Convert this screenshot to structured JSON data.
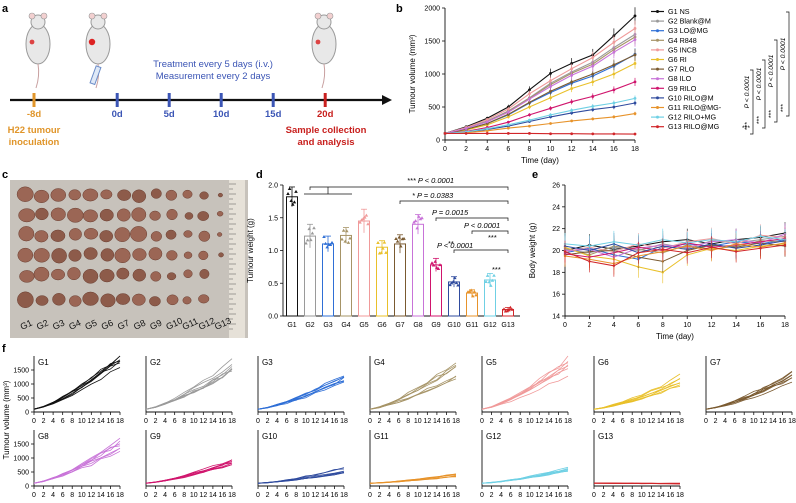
{
  "panels": {
    "a": {
      "label": "a",
      "treatment": "Treatment every 5 days (i.v.)",
      "measurement": "Measurement every 2 days",
      "inoculation_line1": "H22 tumour",
      "inoculation_line2": "inoculation",
      "sample_line1": "Sample collection",
      "sample_line2": "and analysis",
      "timepoints": [
        {
          "label": "-8d",
          "day": -8,
          "color": "#e0952a"
        },
        {
          "label": "0d",
          "day": 0,
          "color": "#3b55b5"
        },
        {
          "label": "5d",
          "day": 5,
          "color": "#3b55b5"
        },
        {
          "label": "10d",
          "day": 10,
          "color": "#3b55b5"
        },
        {
          "label": "15d",
          "day": 15,
          "color": "#3b55b5"
        },
        {
          "label": "20d",
          "day": 20,
          "color": "#c8201e"
        }
      ]
    },
    "b": {
      "label": "b"
    },
    "c": {
      "label": "c",
      "groups": [
        "G1",
        "G2",
        "G3",
        "G4",
        "G5",
        "G6",
        "G7",
        "G8",
        "G9",
        "G10",
        "G11",
        "G12",
        "G13"
      ]
    },
    "d": {
      "label": "d"
    },
    "e": {
      "label": "e"
    },
    "f": {
      "label": "f",
      "ylabel": "Tumour volume (mm³)"
    }
  },
  "groups": [
    {
      "id": "G1",
      "name": "G1 NS",
      "color": "#111111"
    },
    {
      "id": "G2",
      "name": "G2 Blank@M",
      "color": "#9a9a9a"
    },
    {
      "id": "G3",
      "name": "G3 LO@MG",
      "color": "#2f6fd6"
    },
    {
      "id": "G4",
      "name": "G4 R848",
      "color": "#a69467"
    },
    {
      "id": "G5",
      "name": "G5 INCB",
      "color": "#f09a9a"
    },
    {
      "id": "G6",
      "name": "G6 RI",
      "color": "#e9c02a"
    },
    {
      "id": "G7",
      "name": "G7 RLO",
      "color": "#7a5a30"
    },
    {
      "id": "G8",
      "name": "G8 ILO",
      "color": "#c873d8"
    },
    {
      "id": "G9",
      "name": "G9 RILO",
      "color": "#d0156d"
    },
    {
      "id": "G10",
      "name": "G10 RILO@M",
      "color": "#2f4b9e"
    },
    {
      "id": "G11",
      "name": "G11 RILO@MG-",
      "color": "#e7932b"
    },
    {
      "id": "G12",
      "name": "G12 RILO+MG",
      "color": "#6fd0e4"
    },
    {
      "id": "G13",
      "name": "G13 RILO@MG",
      "color": "#d1262a"
    }
  ],
  "chart_data": [
    {
      "id": "b",
      "type": "line",
      "title": "",
      "xlabel": "Time (day)",
      "ylabel": "Tumour volume (mm³)",
      "xlim": [
        0,
        18
      ],
      "ylim": [
        0,
        2000
      ],
      "xticks": [
        0,
        2,
        4,
        6,
        8,
        10,
        12,
        14,
        16,
        18
      ],
      "yticks": [
        0,
        500,
        1000,
        1500,
        2000
      ],
      "x": [
        0,
        2,
        4,
        6,
        8,
        10,
        12,
        14,
        16,
        18
      ],
      "series": [
        {
          "name": "G1 NS",
          "values": [
            100,
            200,
            330,
            500,
            760,
            1010,
            1160,
            1290,
            1580,
            1880
          ]
        },
        {
          "name": "G2 Blank@M",
          "values": [
            100,
            180,
            290,
            440,
            640,
            860,
            1030,
            1180,
            1400,
            1600
          ]
        },
        {
          "name": "G3 LO@MG",
          "values": [
            100,
            160,
            250,
            380,
            560,
            720,
            860,
            970,
            1120,
            1300
          ]
        },
        {
          "name": "G4 R848",
          "values": [
            100,
            180,
            280,
            430,
            630,
            840,
            1010,
            1150,
            1370,
            1560
          ]
        },
        {
          "name": "G5 INCB",
          "values": [
            100,
            190,
            310,
            470,
            700,
            900,
            1080,
            1250,
            1480,
            1690
          ]
        },
        {
          "name": "G6 RI",
          "values": [
            100,
            150,
            230,
            350,
            500,
            640,
            780,
            880,
            1000,
            1160
          ]
        },
        {
          "name": "G7 RLO",
          "values": [
            100,
            160,
            250,
            390,
            570,
            740,
            880,
            1000,
            1140,
            1290
          ]
        },
        {
          "name": "G8 ILO",
          "values": [
            100,
            175,
            275,
            420,
            620,
            810,
            980,
            1120,
            1330,
            1520
          ]
        },
        {
          "name": "G9 RILO",
          "values": [
            100,
            130,
            190,
            270,
            380,
            480,
            580,
            660,
            760,
            880
          ]
        },
        {
          "name": "G10 RILO@M",
          "values": [
            100,
            120,
            160,
            210,
            280,
            350,
            410,
            460,
            500,
            560
          ]
        },
        {
          "name": "G11 RILO@MG-",
          "values": [
            100,
            110,
            140,
            180,
            210,
            250,
            290,
            320,
            350,
            400
          ]
        },
        {
          "name": "G12 RILO+MG",
          "values": [
            100,
            125,
            170,
            230,
            300,
            380,
            450,
            510,
            560,
            630
          ]
        },
        {
          "name": "G13 RILO@MG",
          "values": [
            100,
            100,
            100,
            100,
            100,
            95,
            95,
            92,
            92,
            90
          ]
        }
      ],
      "annotations": [
        "***",
        "***",
        "***",
        "***",
        "***",
        "P < 0.0001",
        "P < 0.0001",
        "P < 0.0001",
        "P < 0.0001"
      ]
    },
    {
      "id": "d",
      "type": "bar",
      "title": "",
      "xlabel": "",
      "ylabel": "Tumour weight (g)",
      "ylim": [
        0,
        2.0
      ],
      "yticks": [
        0,
        0.5,
        1.0,
        1.5,
        2.0
      ],
      "categories": [
        "G1",
        "G2",
        "G3",
        "G4",
        "G5",
        "G6",
        "G7",
        "G8",
        "G9",
        "G10",
        "G11",
        "G12",
        "G13"
      ],
      "values": [
        1.82,
        1.22,
        1.1,
        1.23,
        1.45,
        1.05,
        1.1,
        1.4,
        0.78,
        0.52,
        0.35,
        0.55,
        0.1
      ],
      "errors": [
        0.15,
        0.18,
        0.12,
        0.12,
        0.18,
        0.1,
        0.14,
        0.15,
        0.1,
        0.08,
        0.05,
        0.1,
        0.03
      ],
      "annotations": [
        {
          "text": "*** P < 0.0001"
        },
        {
          "text": "* P = 0.0383"
        },
        {
          "text": "P = 0.0015"
        },
        {
          "text": "**"
        },
        {
          "text": "P < 0.0001"
        },
        {
          "text": "***"
        },
        {
          "text": "P < 0.0001"
        },
        {
          "text": "***"
        }
      ]
    },
    {
      "id": "e",
      "type": "line",
      "title": "",
      "xlabel": "Time (day)",
      "ylabel": "Body weight (g)",
      "xlim": [
        0,
        18
      ],
      "ylim": [
        14,
        26
      ],
      "xticks": [
        0,
        2,
        4,
        6,
        8,
        10,
        12,
        14,
        16,
        18
      ],
      "yticks": [
        14,
        16,
        18,
        20,
        22,
        24,
        26
      ],
      "x": [
        0,
        2,
        4,
        6,
        8,
        10,
        12,
        14,
        16,
        18
      ],
      "series": [
        {
          "name": "G1 NS",
          "values": [
            20.0,
            20.5,
            20.1,
            20.4,
            20.8,
            21.0,
            20.6,
            21.0,
            21.2,
            21.6
          ]
        },
        {
          "name": "G2 Blank@M",
          "values": [
            20.1,
            19.8,
            20.3,
            20.0,
            20.6,
            20.2,
            20.9,
            20.7,
            21.0,
            21.3
          ]
        },
        {
          "name": "G3 LO@MG",
          "values": [
            19.8,
            20.2,
            19.6,
            19.2,
            20.3,
            20.6,
            20.4,
            20.8,
            20.6,
            21.0
          ]
        },
        {
          "name": "G4 R848",
          "values": [
            20.2,
            19.6,
            20.4,
            20.1,
            19.8,
            20.5,
            20.1,
            20.4,
            20.9,
            20.8
          ]
        },
        {
          "name": "G5 INCB",
          "values": [
            19.9,
            20.3,
            19.9,
            20.6,
            20.2,
            20.8,
            21.1,
            20.6,
            21.4,
            21.2
          ]
        },
        {
          "name": "G6 RI",
          "values": [
            20.3,
            19.5,
            19.2,
            18.5,
            18.0,
            19.6,
            20.2,
            20.0,
            20.4,
            20.6
          ]
        },
        {
          "name": "G7 RLO",
          "values": [
            19.6,
            19.9,
            20.0,
            19.4,
            19.0,
            20.0,
            20.5,
            20.3,
            20.7,
            20.4
          ]
        },
        {
          "name": "G8 ILO",
          "values": [
            20.0,
            20.1,
            19.4,
            20.2,
            20.5,
            20.3,
            20.8,
            21.0,
            20.7,
            21.5
          ]
        },
        {
          "name": "G9 RILO",
          "values": [
            19.7,
            19.4,
            19.8,
            20.3,
            20.0,
            20.7,
            20.3,
            20.5,
            20.8,
            21.1
          ]
        },
        {
          "name": "G10 RILO@M",
          "values": [
            20.4,
            20.0,
            20.6,
            19.8,
            20.4,
            20.1,
            20.6,
            20.2,
            20.5,
            20.9
          ]
        },
        {
          "name": "G11 RILO@MG-",
          "values": [
            19.5,
            19.2,
            18.8,
            19.5,
            19.9,
            20.4,
            20.0,
            20.6,
            20.3,
            20.7
          ]
        },
        {
          "name": "G12 RILO+MG",
          "values": [
            20.6,
            20.4,
            20.8,
            20.5,
            21.0,
            20.7,
            21.0,
            20.8,
            21.3,
            21.0
          ]
        },
        {
          "name": "G13 RILO@MG",
          "values": [
            19.9,
            19.0,
            18.6,
            19.8,
            20.1,
            19.8,
            20.3,
            19.9,
            20.2,
            20.5
          ]
        }
      ]
    },
    {
      "id": "f",
      "type": "line",
      "title": "",
      "xlabel": "",
      "ylabel": "Tumour volume (mm³)",
      "xlim": [
        0,
        18
      ],
      "ylim": [
        0,
        2000
      ],
      "xticks": [
        0,
        2,
        4,
        6,
        8,
        10,
        12,
        14,
        16,
        18
      ],
      "yticks": [
        0,
        500,
        1000,
        1500,
        2000
      ],
      "subplots": [
        {
          "name": "G1",
          "final": 1880
        },
        {
          "name": "G2",
          "final": 1600
        },
        {
          "name": "G3",
          "final": 1300
        },
        {
          "name": "G4",
          "final": 1560
        },
        {
          "name": "G5",
          "final": 1690
        },
        {
          "name": "G6",
          "final": 1160
        },
        {
          "name": "G7",
          "final": 1290
        },
        {
          "name": "G8",
          "final": 1520
        },
        {
          "name": "G9",
          "final": 880
        },
        {
          "name": "G10",
          "final": 560
        },
        {
          "name": "G11",
          "final": 400
        },
        {
          "name": "G12",
          "final": 630
        },
        {
          "name": "G13",
          "final": 90
        }
      ]
    }
  ]
}
